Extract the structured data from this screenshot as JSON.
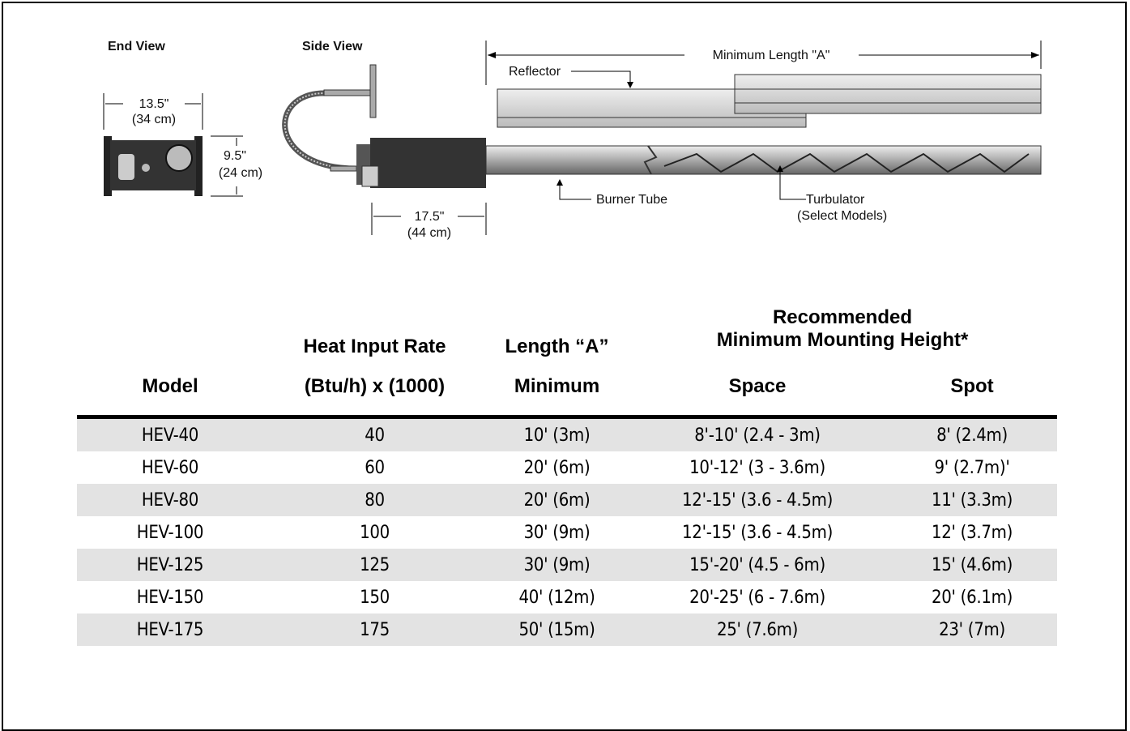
{
  "diagram": {
    "end_view": {
      "title": "End View",
      "width": "13.5\"",
      "width_metric": "(34 cm)",
      "height": "9.5\"",
      "height_metric": "(24 cm)"
    },
    "side_view": {
      "title": "Side View",
      "length": "17.5\"",
      "length_metric": "(44 cm)"
    },
    "labels": {
      "min_length": "Minimum Length \"A\"",
      "reflector": "Reflector",
      "burner_tube": "Burner Tube",
      "turbulator": "Turbulator",
      "turbulator_note": "(Select Models)"
    }
  },
  "table": {
    "group_header": {
      "heat_input": "Heat Input Rate",
      "length": "Length “A”",
      "recommended": "Recommended",
      "mounting": "Minimum Mounting Height*"
    },
    "columns": [
      "Model",
      "(Btu/h) x (1000)",
      "Minimum",
      "Space",
      "Spot"
    ],
    "rows": [
      [
        "HEV-40",
        40,
        "10' (3m)",
        "8'-10' (2.4 - 3m)",
        "8' (2.4m)"
      ],
      [
        "HEV-60",
        60,
        "20' (6m)",
        "10'-12' (3 - 3.6m)",
        "9' (2.7m)'"
      ],
      [
        "HEV-80",
        80,
        "20' (6m)",
        "12'-15' (3.6 - 4.5m)",
        "11' (3.3m)"
      ],
      [
        "HEV-100",
        100,
        "30' (9m)",
        "12'-15' (3.6 - 4.5m)",
        "12' (3.7m)"
      ],
      [
        "HEV-125",
        125,
        "30' (9m)",
        "15'-20' (4.5 - 6m)",
        "15' (4.6m)"
      ],
      [
        "HEV-150",
        150,
        "40' (12m)",
        "20'-25' (6 - 7.6m)",
        "20' (6.1m)"
      ],
      [
        "HEV-175",
        175,
        "50' (15m)",
        "25' (7.6m)",
        "23' (7m)"
      ]
    ]
  }
}
